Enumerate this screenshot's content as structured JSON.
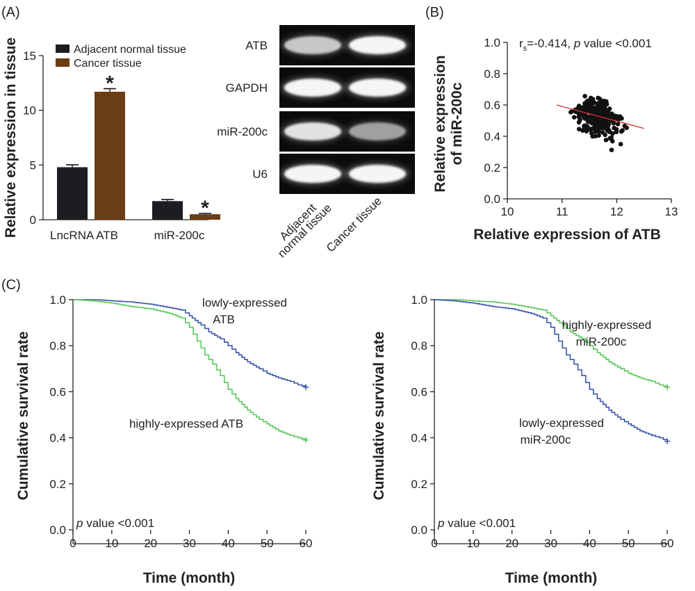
{
  "panels": {
    "A": "(A)",
    "B": "(B)",
    "C": "(C)"
  },
  "colors": {
    "normal": "#1f1c21",
    "cancer": "#6b3d14",
    "blue": "#3a56a8",
    "green": "#5ac85a",
    "fit": "#e03030",
    "dots": "#111111"
  },
  "chart_data": [
    {
      "type": "bar",
      "panel": "A",
      "categories": [
        "LncRNA ATB",
        "miR-200c"
      ],
      "series": [
        {
          "name": "Adjacent normal tissue",
          "values": [
            4.8,
            1.7
          ],
          "errors": [
            0.22,
            0.15
          ]
        },
        {
          "name": "Cancer tissue",
          "values": [
            11.7,
            0.5
          ],
          "errors": [
            0.28,
            0.08
          ]
        }
      ],
      "significance": [
        "*",
        "*"
      ],
      "ylabel": "Relative expression in tissue",
      "ylim": [
        0,
        15
      ],
      "yticks": [
        0,
        5,
        10,
        15
      ],
      "legend": "top-left"
    },
    {
      "type": "table",
      "panel": "A-gel",
      "rows": [
        "ATB",
        "GAPDH",
        "miR-200c",
        "U6"
      ],
      "lanes": [
        "Adjacent normal tissue",
        "Cancer tissue"
      ],
      "lane_label_lines": [
        [
          "Adjacent",
          "normal tissue"
        ],
        [
          "Cancer tissue"
        ]
      ],
      "band_intensity": [
        [
          0.72,
          0.95
        ],
        [
          0.95,
          0.95
        ],
        [
          0.85,
          0.55
        ],
        [
          0.95,
          0.95
        ]
      ]
    },
    {
      "type": "scatter",
      "panel": "B",
      "xlabel": "Relative expression of ATB",
      "ylabel_lines": [
        "Relative expression",
        "of miR-200c"
      ],
      "xlim": [
        10,
        13
      ],
      "ylim": [
        0,
        1.0
      ],
      "xticks": [
        10,
        11,
        12,
        13
      ],
      "yticks": [
        "0.0",
        "0.2",
        "0.4",
        "0.6",
        "0.8",
        "1.0"
      ],
      "n_points": 300,
      "x_center": 11.65,
      "x_spread": 0.33,
      "y_center": 0.52,
      "y_spread": 0.09,
      "fit_line": {
        "x": [
          10.9,
          12.5
        ],
        "y": [
          0.6,
          0.45
        ]
      },
      "annotation": {
        "r": "r",
        "sub": "s",
        "value": "=-0.414, ",
        "p": "p",
        "rest": " value <0.001"
      }
    },
    {
      "type": "line",
      "panel": "C-left",
      "xlabel": "Time (month)",
      "ylabel": "Cumulative survival rate",
      "xlim": [
        0,
        60
      ],
      "ylim": [
        0,
        1.0
      ],
      "xticks": [
        0,
        10,
        20,
        30,
        40,
        50,
        60
      ],
      "yticks": [
        "0.0",
        "0.2",
        "0.4",
        "0.6",
        "0.8",
        "1.0"
      ],
      "series": [
        {
          "name": "lowly-expressed ATB",
          "color": "blue",
          "x": [
            0,
            6,
            10,
            15,
            20,
            25,
            28,
            30,
            33,
            35,
            38,
            40,
            42,
            45,
            48,
            50,
            53,
            56,
            58,
            60
          ],
          "y": [
            1.0,
            1.0,
            0.995,
            0.99,
            0.98,
            0.965,
            0.955,
            0.93,
            0.89,
            0.86,
            0.83,
            0.8,
            0.77,
            0.73,
            0.7,
            0.68,
            0.66,
            0.645,
            0.63,
            0.62
          ]
        },
        {
          "name": "highly-expressed ATB",
          "color": "green",
          "x": [
            0,
            5,
            10,
            15,
            20,
            25,
            28,
            30,
            32,
            34,
            36,
            38,
            40,
            42,
            45,
            48,
            50,
            53,
            56,
            58,
            60
          ],
          "y": [
            1.0,
            0.995,
            0.985,
            0.97,
            0.96,
            0.94,
            0.92,
            0.88,
            0.82,
            0.76,
            0.72,
            0.67,
            0.61,
            0.57,
            0.52,
            0.48,
            0.46,
            0.43,
            0.41,
            0.4,
            0.39
          ]
        }
      ],
      "labels": [
        {
          "series": 0,
          "lines": [
            "lowly-expressed",
            "ATB"
          ]
        },
        {
          "series": 1,
          "lines": [
            "highly-expressed ATB"
          ]
        }
      ],
      "pvalue": {
        "p": "p",
        "rest": " value <0.001"
      }
    },
    {
      "type": "line",
      "panel": "C-right",
      "xlabel": "Time (month)",
      "ylabel": "Cumulative survival rate",
      "xlim": [
        0,
        60
      ],
      "ylim": [
        0,
        1.0
      ],
      "xticks": [
        0,
        10,
        20,
        30,
        40,
        50,
        60
      ],
      "yticks": [
        "0.0",
        "0.2",
        "0.4",
        "0.6",
        "0.8",
        "1.0"
      ],
      "series": [
        {
          "name": "highly-expressed miR-200c",
          "color": "green",
          "x": [
            0,
            6,
            10,
            15,
            20,
            25,
            28,
            30,
            33,
            35,
            38,
            40,
            42,
            45,
            48,
            50,
            53,
            56,
            58,
            60
          ],
          "y": [
            1.0,
            1.0,
            0.995,
            0.99,
            0.98,
            0.965,
            0.955,
            0.93,
            0.89,
            0.86,
            0.83,
            0.8,
            0.77,
            0.73,
            0.7,
            0.68,
            0.66,
            0.645,
            0.63,
            0.62
          ]
        },
        {
          "name": "lowly-expressed miR-200c",
          "color": "blue",
          "x": [
            0,
            5,
            10,
            15,
            20,
            25,
            28,
            30,
            32,
            34,
            36,
            38,
            40,
            42,
            45,
            48,
            50,
            53,
            56,
            58,
            60
          ],
          "y": [
            1.0,
            0.995,
            0.985,
            0.97,
            0.96,
            0.94,
            0.92,
            0.88,
            0.82,
            0.76,
            0.72,
            0.67,
            0.61,
            0.57,
            0.52,
            0.48,
            0.46,
            0.43,
            0.41,
            0.4,
            0.385
          ]
        }
      ],
      "labels": [
        {
          "series": 0,
          "lines": [
            "highly-expressed",
            "miR-200c"
          ]
        },
        {
          "series": 1,
          "lines": [
            "lowly-expressed",
            "miR-200c"
          ]
        }
      ],
      "pvalue": {
        "p": "p",
        "rest": " value <0.001"
      }
    }
  ]
}
